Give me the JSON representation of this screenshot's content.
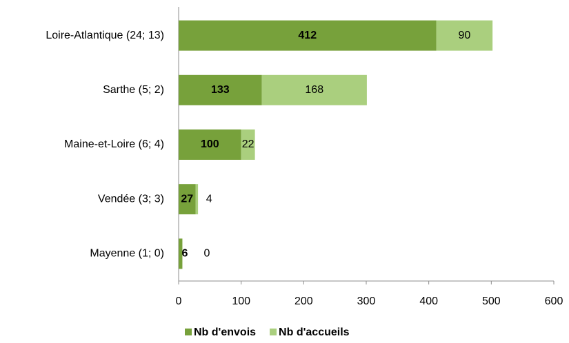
{
  "chart_data": {
    "type": "bar",
    "orientation": "horizontal",
    "stacked": true,
    "categories": [
      "Loire-Atlantique (24; 13)",
      "Sarthe (5; 2)",
      "Maine-et-Loire (6; 4)",
      "Vendée (3; 3)",
      "Mayenne (1; 0)"
    ],
    "series": [
      {
        "name": "Nb d'envois",
        "color": "#77a13b",
        "values": [
          412,
          133,
          100,
          27,
          6
        ]
      },
      {
        "name": "Nb d'accueils",
        "color": "#aacf7e",
        "values": [
          90,
          168,
          22,
          4,
          0
        ]
      }
    ],
    "xlim": [
      0,
      600
    ],
    "xticks": [
      0,
      100,
      200,
      300,
      400,
      500,
      600
    ],
    "grid": false,
    "legend": "bottom"
  }
}
